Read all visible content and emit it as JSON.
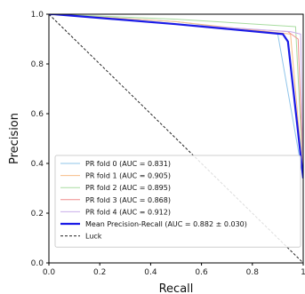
{
  "chart_data": {
    "type": "line",
    "title": "",
    "xlabel": "Recall",
    "ylabel": "Precision",
    "xlim": [
      0,
      1
    ],
    "ylim": [
      0,
      1
    ],
    "x_ticks": [
      "0.0",
      "0.2",
      "0.4",
      "0.6",
      "0.8",
      "1"
    ],
    "y_ticks": [
      "0.0",
      "0.2",
      "0.4",
      "0.6",
      "0.8",
      "1.0"
    ],
    "grid": false,
    "legend_position": "lower-right",
    "series": [
      {
        "name": "PR fold 0 (AUC = 0.831)",
        "color": "#8fc4ea",
        "width": 1,
        "x": [
          0,
          0.02,
          0.5,
          0.9,
          1.0
        ],
        "y": [
          1.0,
          1.0,
          0.97,
          0.92,
          0.34
        ]
      },
      {
        "name": "PR fold 1 (AUC = 0.905)",
        "color": "#f7bd87",
        "width": 1,
        "x": [
          0,
          0.02,
          0.5,
          0.95,
          1.0
        ],
        "y": [
          1.0,
          1.0,
          0.97,
          0.92,
          0.34
        ]
      },
      {
        "name": "PR fold 2 (AUC = 0.895)",
        "color": "#a8dca0",
        "width": 1,
        "x": [
          0,
          0.02,
          0.5,
          0.97,
          1.0
        ],
        "y": [
          1.0,
          1.0,
          0.98,
          0.95,
          0.34
        ]
      },
      {
        "name": "PR fold 3 (AUC = 0.868)",
        "color": "#f08c8c",
        "width": 1,
        "x": [
          0,
          0.02,
          0.5,
          0.94,
          0.98,
          1.0
        ],
        "y": [
          1.0,
          1.0,
          0.96,
          0.93,
          0.9,
          0.34
        ]
      },
      {
        "name": "PR fold 4 (AUC = 0.912)",
        "color": "#c9aeea",
        "width": 1,
        "x": [
          0,
          0.02,
          0.5,
          0.95,
          0.99,
          1.0
        ],
        "y": [
          1.0,
          1.0,
          0.96,
          0.93,
          0.92,
          0.34
        ]
      },
      {
        "name": "Mean Precision-Recall (AUC = 0.882 ± 0.030)",
        "color": "#1a1ae6",
        "width": 2.2,
        "x": [
          0,
          0.02,
          0.5,
          0.92,
          0.94,
          1.0
        ],
        "y": [
          1.0,
          1.0,
          0.96,
          0.92,
          0.89,
          0.34
        ]
      },
      {
        "name": "Luck",
        "color": "#222222",
        "width": 1,
        "dash": "3,2",
        "x": [
          0,
          1
        ],
        "y": [
          1,
          0
        ]
      }
    ]
  }
}
